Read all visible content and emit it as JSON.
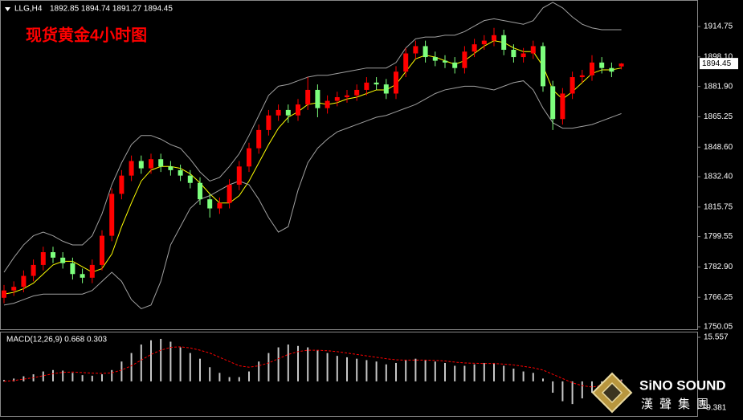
{
  "chart_data": [
    {
      "type": "candlestick",
      "title": "LLG,H4",
      "subtitle": "1892.85 1894.74 1891.27 1894.45",
      "annotation": "现货黄金4小时图",
      "up_color": "#ff0000",
      "down_color": "#7dff7d",
      "open": [
        1766,
        1770,
        1772,
        1778,
        1784,
        1791,
        1788,
        1785,
        1779,
        1777,
        1784,
        1800,
        1823,
        1833,
        1841,
        1837,
        1842,
        1838,
        1836,
        1833,
        1829,
        1820,
        1815,
        1818,
        1828,
        1838,
        1848,
        1858,
        1866,
        1869,
        1866,
        1872,
        1880,
        1870,
        1874,
        1876,
        1877,
        1880,
        1884,
        1883,
        1878,
        1890,
        1900,
        1904,
        1898,
        1896,
        1895,
        1892,
        1901,
        1905,
        1907,
        1910,
        1902,
        1898,
        1900,
        1904,
        1882,
        1864,
        1878,
        1887,
        1888,
        1895,
        1892,
        1892.85
      ],
      "high": [
        1773,
        1775,
        1781,
        1787,
        1794,
        1794,
        1791,
        1788,
        1782,
        1787,
        1803,
        1826,
        1836,
        1844,
        1844,
        1845,
        1845,
        1841,
        1839,
        1836,
        1832,
        1823,
        1821,
        1831,
        1841,
        1851,
        1861,
        1869,
        1872,
        1872,
        1875,
        1887,
        1883,
        1877,
        1879,
        1880,
        1883,
        1887,
        1887,
        1886,
        1893,
        1903,
        1907,
        1907,
        1901,
        1899,
        1898,
        1904,
        1908,
        1910,
        1914,
        1913,
        1905,
        1903,
        1907,
        1906,
        1885,
        1881,
        1890,
        1891,
        1899,
        1898,
        1895,
        1894.74
      ],
      "low": [
        1763,
        1767,
        1769,
        1775,
        1781,
        1785,
        1782,
        1776,
        1774,
        1774,
        1781,
        1797,
        1820,
        1830,
        1834,
        1834,
        1835,
        1833,
        1830,
        1826,
        1817,
        1810,
        1812,
        1815,
        1825,
        1835,
        1845,
        1855,
        1863,
        1862,
        1863,
        1869,
        1865,
        1867,
        1871,
        1873,
        1874,
        1877,
        1880,
        1875,
        1875,
        1887,
        1897,
        1895,
        1893,
        1892,
        1889,
        1889,
        1898,
        1902,
        1904,
        1899,
        1895,
        1895,
        1897,
        1879,
        1858,
        1861,
        1875,
        1884,
        1885,
        1889,
        1887,
        1891.27
      ],
      "close": [
        1770,
        1772,
        1778,
        1784,
        1791,
        1788,
        1785,
        1779,
        1777,
        1784,
        1800,
        1823,
        1833,
        1841,
        1837,
        1842,
        1838,
        1836,
        1833,
        1829,
        1820,
        1815,
        1818,
        1828,
        1838,
        1848,
        1858,
        1866,
        1869,
        1866,
        1872,
        1880,
        1870,
        1874,
        1876,
        1877,
        1880,
        1884,
        1883,
        1878,
        1890,
        1900,
        1904,
        1898,
        1896,
        1895,
        1892,
        1901,
        1905,
        1907,
        1910,
        1902,
        1898,
        1900,
        1904,
        1882,
        1864,
        1878,
        1887,
        1888,
        1895,
        1892,
        1890,
        1894.45
      ],
      "series": [
        {
          "color": "#ffff00",
          "values": [
            1768,
            1769,
            1771,
            1774,
            1779,
            1784,
            1786,
            1786,
            1783,
            1780,
            1782,
            1790,
            1805,
            1818,
            1830,
            1836,
            1838,
            1838,
            1837,
            1834,
            1829,
            1823,
            1818,
            1818,
            1822,
            1830,
            1840,
            1850,
            1859,
            1865,
            1868,
            1872,
            1873,
            1872,
            1873,
            1875,
            1876,
            1878,
            1880,
            1880,
            1883,
            1890,
            1897,
            1899,
            1898,
            1896,
            1894,
            1896,
            1900,
            1904,
            1907,
            1906,
            1903,
            1901,
            1901,
            1893,
            1880,
            1875,
            1879,
            1884,
            1889,
            1891,
            1891,
            1892
          ]
        },
        {
          "color": "#a0a0a0",
          "values": [
            1780,
            1788,
            1795,
            1800,
            1802,
            1800,
            1797,
            1795,
            1795,
            1800,
            1812,
            1828,
            1840,
            1850,
            1855,
            1855,
            1853,
            1850,
            1848,
            1842,
            1835,
            1830,
            1832,
            1838,
            1845,
            1855,
            1866,
            1877,
            1882,
            1883,
            1885,
            1887,
            1888,
            1888,
            1889,
            1890,
            1891,
            1892,
            1892,
            1892,
            1895,
            1903,
            1908,
            1909,
            1909,
            1910,
            1910,
            1912,
            1915,
            1918,
            1919,
            1918,
            1917,
            1916,
            1918,
            1925,
            1928,
            1925,
            1920,
            1916,
            1914,
            1913,
            1913,
            1913
          ]
        },
        {
          "color": "#a0a0a0",
          "values": [
            1762,
            1763,
            1765,
            1767,
            1768,
            1768,
            1768,
            1768,
            1768,
            1770,
            1775,
            1780,
            1775,
            1765,
            1760,
            1762,
            1775,
            1795,
            1805,
            1815,
            1820,
            1822,
            1825,
            1828,
            1830,
            1828,
            1820,
            1810,
            1802,
            1805,
            1825,
            1840,
            1848,
            1853,
            1857,
            1859,
            1861,
            1863,
            1865,
            1866,
            1868,
            1870,
            1872,
            1875,
            1878,
            1880,
            1881,
            1882,
            1882,
            1881,
            1880,
            1882,
            1884,
            1885,
            1880,
            1870,
            1862,
            1859,
            1859,
            1860,
            1861,
            1863,
            1865,
            1867
          ]
        }
      ],
      "last_price": 1894.45,
      "ylim": [
        1748.73,
        1929.3
      ],
      "yticks": [
        1914.75,
        {
          "value": 1898.1,
          "label": "1898.10"
        },
        {
          "value": 1881.9,
          "label": "1881.90"
        },
        1865.25,
        {
          "value": 1848.6,
          "label": "1848.60"
        },
        {
          "value": 1832.4,
          "label": "1832.40"
        },
        1815.75,
        1799.55,
        {
          "value": 1782.9,
          "label": "1782.90"
        },
        1766.25,
        1750.05
      ]
    },
    {
      "type": "bar",
      "title": "MACD(12,26,9) 0.668 0.303",
      "series": [
        {
          "color": "#c8c8c8",
          "values": [
            0.5,
            1,
            1.8,
            2.5,
            3.5,
            4,
            3.8,
            3,
            2.2,
            2,
            2.5,
            4,
            7,
            10,
            13,
            14.5,
            15,
            14,
            12,
            10,
            8,
            5,
            3,
            1.5,
            1.5,
            3.5,
            7,
            10,
            12,
            13,
            12.5,
            12,
            11,
            10,
            9,
            8.5,
            8,
            7.5,
            7,
            6,
            6.5,
            7.5,
            8,
            7.5,
            7,
            6.5,
            5.5,
            5.5,
            6,
            6.5,
            6.5,
            5.5,
            4.5,
            3.5,
            3,
            1,
            -4,
            -7,
            -8,
            -6,
            -4,
            -2,
            -0.5,
            0.668
          ]
        },
        {
          "color": "#ff0000",
          "kind": "line",
          "dashed": true,
          "values": [
            0,
            0.3,
            0.8,
            1.3,
            2,
            2.7,
            3.2,
            3.3,
            3.1,
            2.9,
            2.8,
            3,
            4,
            5.5,
            7.5,
            9.5,
            11,
            12,
            12.2,
            11.8,
            11,
            10,
            8.5,
            7,
            5.5,
            5,
            5.5,
            6.5,
            8,
            9.5,
            10.5,
            11,
            11,
            10.8,
            10.5,
            10,
            9.5,
            9,
            8.5,
            8,
            7.6,
            7.5,
            7.5,
            7.5,
            7.4,
            7.2,
            6.8,
            6.5,
            6.4,
            6.3,
            6.3,
            6.1,
            5.8,
            5.3,
            4.8,
            4,
            2.5,
            1,
            -0.5,
            -1.5,
            -2,
            -1.5,
            -0.8,
            0.303
          ]
        }
      ],
      "ylim": [
        -12.21,
        17.54
      ],
      "yticks": [
        15.557,
        -9.381
      ]
    }
  ],
  "logo": {
    "name": "SiNO SOUND",
    "subtitle": "漢聲集團"
  }
}
